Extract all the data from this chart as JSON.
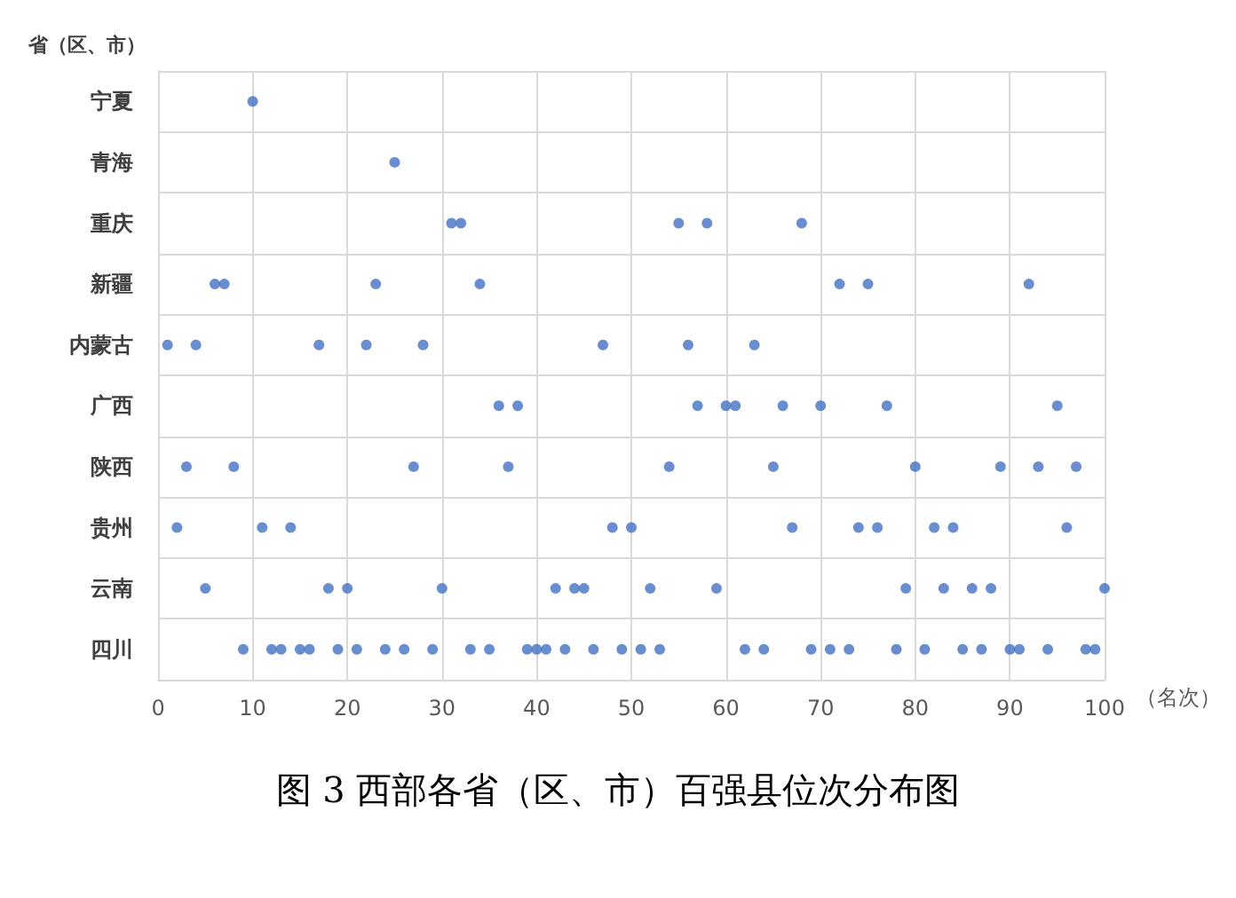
{
  "chart_data": {
    "type": "scatter",
    "orientation": "horizontal",
    "title": "图 3 西部各省（区、市）百强县位次分布图",
    "xlabel": "（名次）",
    "ylabel": "省（区、市）",
    "categories": [
      "宁夏",
      "青海",
      "重庆",
      "新疆",
      "内蒙古",
      "广西",
      "陕西",
      "贵州",
      "云南",
      "四川"
    ],
    "series": [
      {
        "color": "#4472c4",
        "x": [
          "内蒙古",
          "贵州",
          "陕西",
          "内蒙古",
          "云南",
          "新疆",
          "新疆",
          "陕西",
          "四川",
          "宁夏",
          "贵州",
          "四川",
          "四川",
          "贵州",
          "四川",
          "四川",
          "内蒙古",
          "云南",
          "四川",
          "云南",
          "四川",
          "内蒙古",
          "新疆",
          "四川",
          "青海",
          "四川",
          "陕西",
          "内蒙古",
          "四川",
          "云南",
          "重庆",
          "重庆",
          "四川",
          "新疆",
          "四川",
          "广西",
          "陕西",
          "广西",
          "四川",
          "四川",
          "四川",
          "云南",
          "四川",
          "云南",
          "云南",
          "四川",
          "内蒙古",
          "贵州",
          "四川",
          "贵州",
          "四川",
          "云南",
          "四川",
          "陕西",
          "重庆",
          "内蒙古",
          "广西",
          "重庆",
          "云南",
          "广西",
          "广西",
          "四川",
          "内蒙古",
          "四川",
          "陕西",
          "广西",
          "贵州",
          "重庆",
          "四川",
          "广西",
          "四川",
          "新疆",
          "四川",
          "贵州",
          "新疆",
          "贵州",
          "广西",
          "四川",
          "云南",
          "陕西",
          "四川",
          "贵州",
          "云南",
          "贵州",
          "四川",
          "云南",
          "四川",
          "云南",
          "陕西",
          "四川",
          "四川",
          "新疆",
          "陕西",
          "四川",
          "广西",
          "贵州",
          "陕西",
          "四川",
          "四川",
          "云南"
        ],
        "values": [
          1,
          2,
          3,
          4,
          5,
          6,
          7,
          8,
          9,
          10,
          11,
          12,
          13,
          14,
          15,
          16,
          17,
          18,
          19,
          20,
          21,
          22,
          23,
          24,
          25,
          26,
          27,
          28,
          29,
          30,
          31,
          32,
          33,
          34,
          35,
          36,
          37,
          38,
          39,
          40,
          41,
          42,
          43,
          44,
          45,
          46,
          47,
          48,
          49,
          50,
          51,
          52,
          53,
          54,
          55,
          56,
          57,
          58,
          59,
          60,
          61,
          62,
          63,
          64,
          65,
          66,
          67,
          68,
          69,
          70,
          71,
          72,
          73,
          74,
          75,
          76,
          77,
          78,
          79,
          80,
          81,
          82,
          83,
          84,
          85,
          86,
          87,
          88,
          89,
          90,
          91,
          92,
          93,
          94,
          95,
          96,
          97,
          98,
          99,
          100
        ]
      }
    ],
    "xlim": [
      0,
      100
    ],
    "xticks": [
      0,
      10,
      20,
      30,
      40,
      50,
      60,
      70,
      80,
      90,
      100
    ],
    "grid": true,
    "marker": "circle"
  }
}
